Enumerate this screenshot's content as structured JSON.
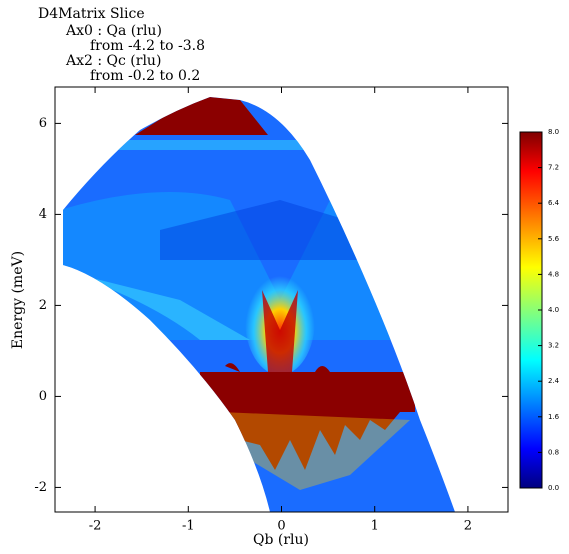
{
  "chart_data": {
    "type": "heatmap",
    "title_lines": [
      "D4Matrix Slice",
      "Ax0 : Qa (rlu)",
      "from -4.2 to -3.8",
      "Ax2 : Qc (rlu)",
      "from -0.2 to 0.2"
    ],
    "x_label": "Qb (rlu)",
    "y_label": "Energy (meV)",
    "xlim": [
      -2.43,
      2.43
    ],
    "xticks": [
      -2,
      -1,
      0,
      1,
      2
    ],
    "ylim": [
      -2.54,
      6.8
    ],
    "yticks": [
      -2,
      0,
      2,
      4,
      6
    ],
    "colorbar": {
      "lim": [
        0,
        8
      ],
      "ticks": [
        {
          "value": 0,
          "label": "0.0"
        },
        0.8,
        1.6,
        2.4,
        3.2,
        {
          "value": 4,
          "label": "4.0"
        },
        4.8,
        5.6,
        6.4,
        7.2,
        {
          "value": 8,
          "label": "8.0"
        }
      ]
    }
  }
}
